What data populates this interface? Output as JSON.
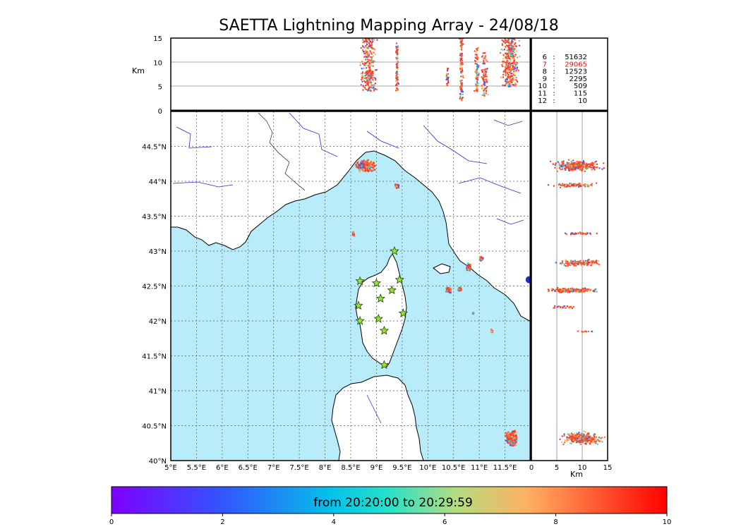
{
  "title": "SAETTA Lightning Mapping Array - 24/08/18",
  "colors": {
    "sea": "#b8ecfb",
    "land": "#ffffff",
    "river": "#2b2bd6",
    "star_fill": "#9de03a",
    "highlight": "#e81010"
  },
  "chart_data": [
    {
      "type": "scatter",
      "panel": "plan-view",
      "xlim": [
        5,
        12.0
      ],
      "ylim": [
        40,
        45
      ],
      "x_tick_labels": [
        "5°E",
        "5.5°E",
        "6°E",
        "6.5°E",
        "7°E",
        "7.5°E",
        "8°E",
        "8.5°E",
        "9°E",
        "9.5°E",
        "10°E",
        "10.5°E",
        "11°E",
        "11.5°E"
      ],
      "y_tick_labels": [
        "40°N",
        "40.5°N",
        "41°N",
        "41.5°N",
        "42°N",
        "42.5°N",
        "43°N",
        "43.5°N",
        "44°N",
        "44.5°N"
      ],
      "grid": true,
      "stations": [
        {
          "lon": 9.35,
          "lat": 43.0
        },
        {
          "lon": 8.68,
          "lat": 42.57
        },
        {
          "lon": 9.0,
          "lat": 42.54
        },
        {
          "lon": 9.45,
          "lat": 42.59
        },
        {
          "lon": 9.3,
          "lat": 42.44
        },
        {
          "lon": 9.08,
          "lat": 42.32
        },
        {
          "lon": 8.65,
          "lat": 42.22
        },
        {
          "lon": 9.52,
          "lat": 42.11
        },
        {
          "lon": 9.04,
          "lat": 42.03
        },
        {
          "lon": 8.68,
          "lat": 42.0
        },
        {
          "lon": 9.15,
          "lat": 41.86
        },
        {
          "lon": 9.15,
          "lat": 41.37
        }
      ],
      "clusters": [
        {
          "lon": 8.8,
          "lat": 44.22,
          "dlon": 0.22,
          "dlat": 0.1,
          "n": 260,
          "alt": 10
        },
        {
          "lon": 9.4,
          "lat": 43.94,
          "dlon": 0.05,
          "dlat": 0.05,
          "n": 40,
          "alt": 9
        },
        {
          "lon": 8.55,
          "lat": 43.25,
          "dlon": 0.03,
          "dlat": 0.04,
          "n": 20,
          "alt": 9
        },
        {
          "lon": 10.79,
          "lat": 42.77,
          "dlon": 0.06,
          "dlat": 0.07,
          "n": 60,
          "alt": 9
        },
        {
          "lon": 11.04,
          "lat": 42.89,
          "dlon": 0.05,
          "dlat": 0.04,
          "n": 30,
          "alt": 9
        },
        {
          "lon": 10.4,
          "lat": 42.44,
          "dlon": 0.07,
          "dlat": 0.05,
          "n": 70,
          "alt": 9
        },
        {
          "lon": 10.62,
          "lat": 42.45,
          "dlon": 0.04,
          "dlat": 0.03,
          "n": 30,
          "alt": 9
        },
        {
          "lon": 10.88,
          "lat": 42.11,
          "dlon": 0.02,
          "dlat": 0.03,
          "n": 8,
          "alt": 6
        },
        {
          "lon": 11.24,
          "lat": 41.85,
          "dlon": 0.03,
          "dlat": 0.03,
          "n": 8,
          "alt": 7
        },
        {
          "lon": 11.63,
          "lat": 40.32,
          "dlon": 0.14,
          "dlat": 0.12,
          "n": 240,
          "alt": 10
        }
      ]
    },
    {
      "type": "scatter",
      "panel": "altitude-longitude",
      "xlim": [
        5,
        12.0
      ],
      "ylim": [
        0,
        15
      ],
      "y_tick_labels": [
        "0",
        "5",
        "10",
        "15"
      ],
      "ylabel": "Km",
      "columns": [
        {
          "lon": 8.85,
          "dlon": 0.2,
          "zmin": 4,
          "zmax": 15,
          "n": 300
        },
        {
          "lon": 9.4,
          "dlon": 0.04,
          "zmin": 4,
          "zmax": 14,
          "n": 80
        },
        {
          "lon": 10.38,
          "dlon": 0.04,
          "zmin": 5,
          "zmax": 9,
          "n": 25
        },
        {
          "lon": 10.65,
          "dlon": 0.05,
          "zmin": 2,
          "zmax": 15,
          "n": 110
        },
        {
          "lon": 10.95,
          "dlon": 0.05,
          "zmin": 4,
          "zmax": 13,
          "n": 80
        },
        {
          "lon": 11.1,
          "dlon": 0.08,
          "zmin": 3,
          "zmax": 12,
          "n": 90
        },
        {
          "lon": 11.6,
          "dlon": 0.22,
          "zmin": 5,
          "zmax": 15,
          "n": 320
        }
      ]
    },
    {
      "type": "scatter",
      "panel": "latitude-altitude",
      "xlim": [
        0,
        15
      ],
      "ylim": [
        40,
        45
      ],
      "x_tick_labels": [
        "0",
        "5",
        "10",
        "15"
      ],
      "xlabel": "Km",
      "bands": [
        {
          "lat": 44.22,
          "dlat": 0.1,
          "zmin": 3,
          "zmax": 15,
          "n": 300
        },
        {
          "lat": 43.94,
          "dlat": 0.04,
          "zmin": 3,
          "zmax": 14,
          "n": 80
        },
        {
          "lat": 43.25,
          "dlat": 0.02,
          "zmin": 5,
          "zmax": 14,
          "n": 40
        },
        {
          "lat": 42.83,
          "dlat": 0.06,
          "zmin": 4,
          "zmax": 15,
          "n": 150
        },
        {
          "lat": 42.44,
          "dlat": 0.04,
          "zmin": 1,
          "zmax": 15,
          "n": 200
        },
        {
          "lat": 42.2,
          "dlat": 0.03,
          "zmin": 3,
          "zmax": 10,
          "n": 25
        },
        {
          "lat": 41.85,
          "dlat": 0.01,
          "zmin": 8,
          "zmax": 13,
          "n": 10
        },
        {
          "lat": 40.32,
          "dlat": 0.12,
          "zmin": 5,
          "zmax": 15,
          "n": 300
        }
      ]
    },
    {
      "type": "table",
      "panel": "station-count-legend",
      "rows": [
        {
          "stations": "6",
          "sep": ":",
          "count": "51632",
          "highlight": false
        },
        {
          "stations": "7",
          "sep": ":",
          "count": "29065",
          "highlight": true
        },
        {
          "stations": "8",
          "sep": ":",
          "count": "12523",
          "highlight": false
        },
        {
          "stations": "9",
          "sep": ":",
          "count": "2295",
          "highlight": false
        },
        {
          "stations": "10",
          "sep": ":",
          "count": "509",
          "highlight": false
        },
        {
          "stations": "11",
          "sep": ":",
          "count": "115",
          "highlight": false
        },
        {
          "stations": "12",
          "sep": ":",
          "count": "10",
          "highlight": false
        }
      ]
    },
    {
      "type": "heatmap",
      "panel": "colorbar",
      "label": "from 20:20:00 to 20:29:59",
      "range": [
        0,
        10
      ],
      "tick_labels": [
        "0",
        "2",
        "4",
        "6",
        "8",
        "10"
      ]
    }
  ]
}
